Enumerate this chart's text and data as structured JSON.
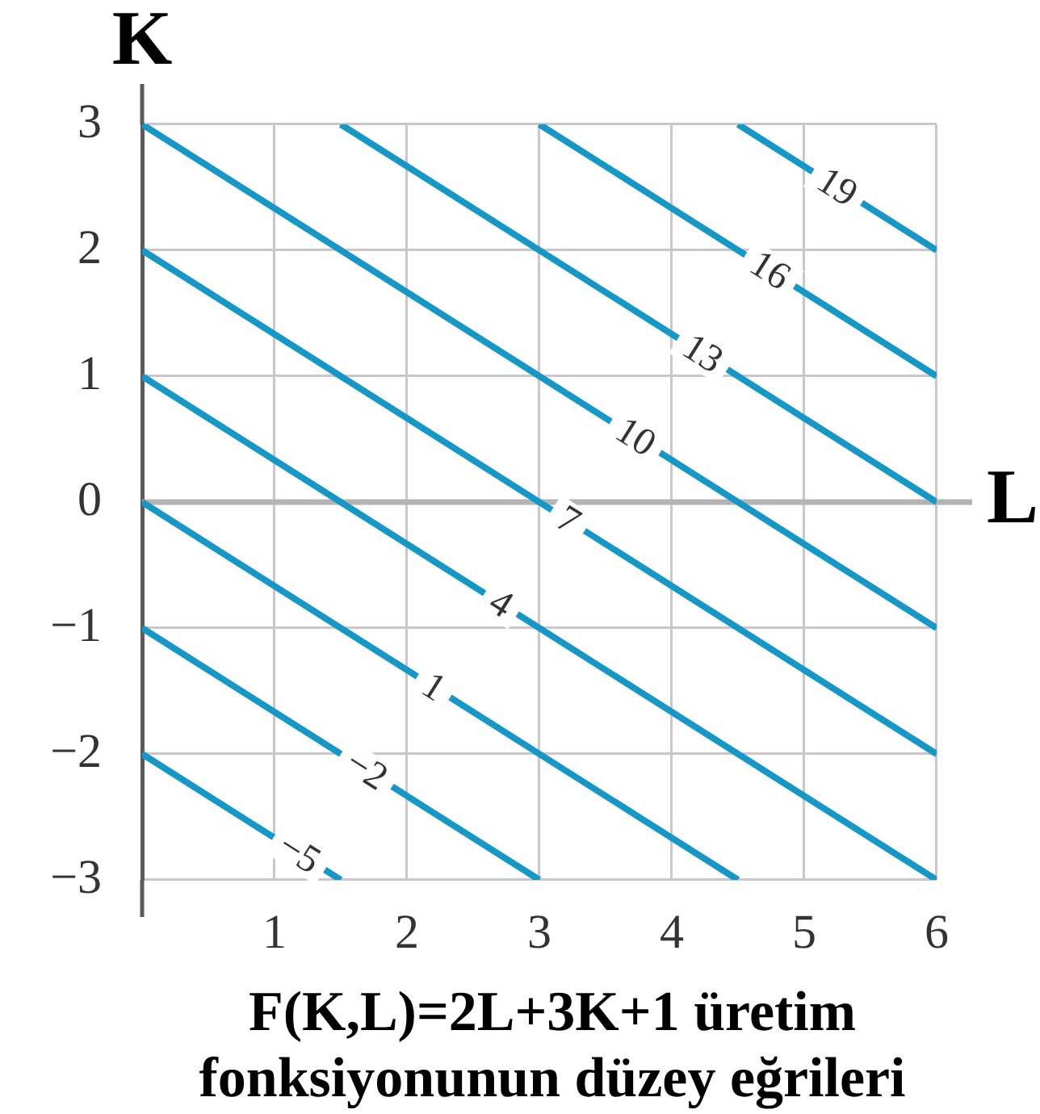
{
  "chart_data": {
    "type": "line",
    "title": "F(K,L)=2L+3K+1 üretim fonksiyonunun düzey eğrileri",
    "xlabel": "L",
    "ylabel": "K",
    "xlim": [
      0,
      6
    ],
    "ylim": [
      -3,
      3
    ],
    "xticks": [
      {
        "value": 0,
        "label": null
      },
      1,
      2,
      3,
      4,
      5,
      6
    ],
    "yticks": [
      -3,
      -2,
      -1,
      0,
      1,
      2,
      3
    ],
    "grid": true,
    "marker": "none",
    "line_style": "solid",
    "ref_lines": [
      {
        "axis": "y",
        "value": 0,
        "color": "#b4b4b4"
      }
    ],
    "series": [
      {
        "name": "−5",
        "color": "#1797c6",
        "x": [
          0,
          1.5
        ],
        "values": [
          -2,
          -3
        ]
      },
      {
        "name": "−2",
        "color": "#1797c6",
        "x": [
          0,
          3
        ],
        "values": [
          -1,
          -3
        ]
      },
      {
        "name": "1",
        "color": "#1797c6",
        "x": [
          0,
          4.5
        ],
        "values": [
          0,
          -3
        ]
      },
      {
        "name": "4",
        "color": "#1797c6",
        "x": [
          0,
          6
        ],
        "values": [
          1,
          -3
        ]
      },
      {
        "name": "7",
        "color": "#1797c6",
        "x": [
          0,
          6
        ],
        "values": [
          2,
          -2
        ]
      },
      {
        "name": "10",
        "color": "#1797c6",
        "x": [
          0,
          6
        ],
        "values": [
          3,
          -1
        ]
      },
      {
        "name": "13",
        "color": "#1797c6",
        "x": [
          1.5,
          6
        ],
        "values": [
          3,
          0
        ]
      },
      {
        "name": "16",
        "color": "#1797c6",
        "x": [
          3,
          6
        ],
        "values": [
          3,
          1
        ]
      },
      {
        "name": "19",
        "color": "#1797c6",
        "x": [
          4.5,
          6
        ],
        "values": [
          3,
          2
        ]
      }
    ]
  }
}
